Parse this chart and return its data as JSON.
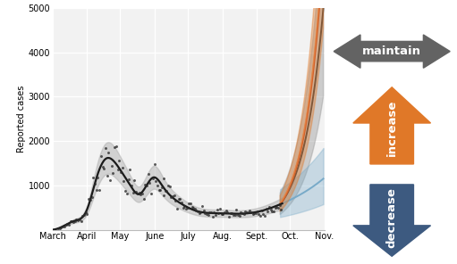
{
  "ylabel": "Reported cases",
  "xlim": [
    0,
    245
  ],
  "ylim": [
    0,
    5000
  ],
  "yticks": [
    0,
    1000,
    2000,
    3000,
    4000,
    5000
  ],
  "month_labels": [
    "March",
    "April",
    "May",
    "June",
    "July",
    "Aug.",
    "Sept.",
    "Oct.",
    "Nov."
  ],
  "month_positions": [
    0,
    31,
    61,
    92,
    122,
    153,
    184,
    214,
    245
  ],
  "plot_bg_color": "#f2f2f2",
  "grid_color": "#ffffff",
  "maintain_color": "#636363",
  "increase_color": "#e07828",
  "decrease_color": "#3d5a80",
  "hist_line_color": "#1a1a1a",
  "hist_band_color": "#aaaaaa",
  "maintain_line_color": "#444444",
  "increase_line_color": "#d4622a",
  "decrease_line_color": "#78aac8"
}
